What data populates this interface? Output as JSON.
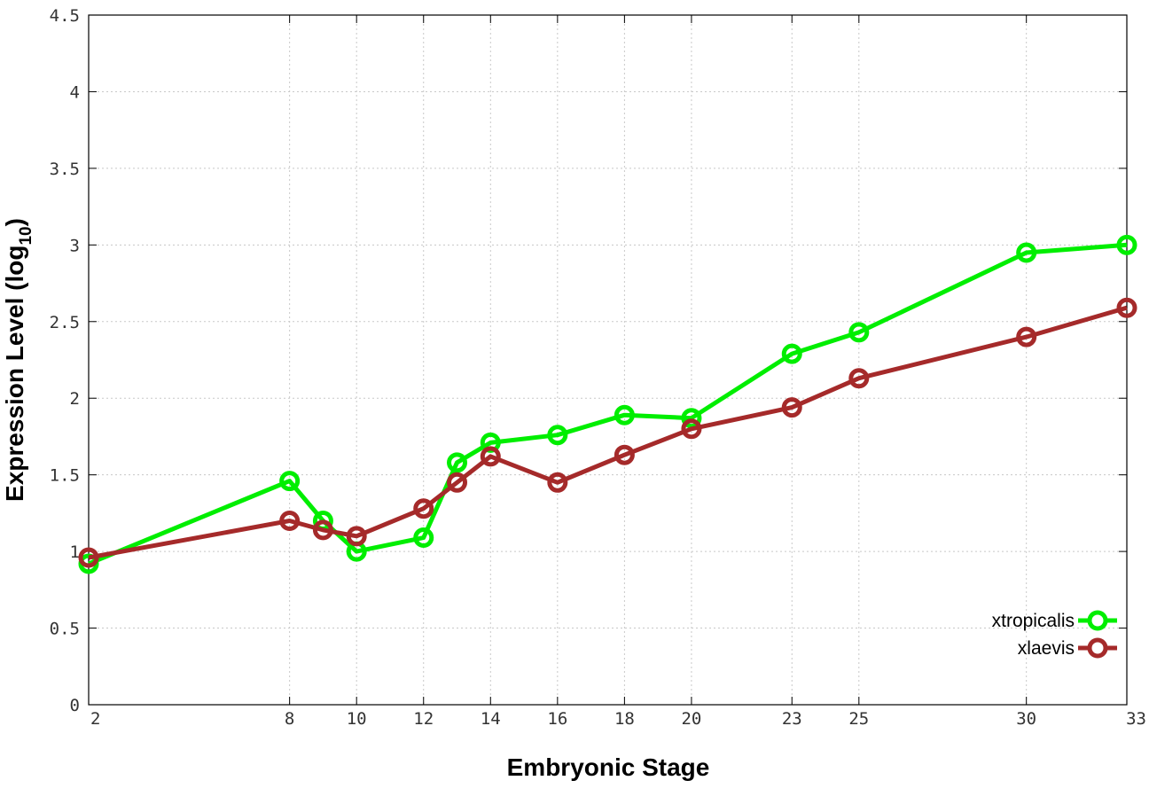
{
  "chart_data": {
    "type": "line",
    "title": "",
    "xlabel": "Embryonic Stage",
    "ylabel_main": "Expression Level (log",
    "ylabel_sub": "10",
    "ylabel_close": ")",
    "xticks": [
      2,
      8,
      10,
      12,
      14,
      16,
      18,
      20,
      23,
      25,
      30,
      33
    ],
    "yticks": [
      "0",
      "0.5",
      "1",
      "1.5",
      "2",
      "2.5",
      "3",
      "3.5",
      "4",
      "4.5"
    ],
    "ylim": [
      0,
      4.5
    ],
    "grid": true,
    "legend_position": "bottom-right",
    "series": [
      {
        "name": "xtropicalis",
        "color": "#00ee00",
        "points": [
          [
            2,
            0.92
          ],
          [
            8,
            1.46
          ],
          [
            9,
            1.2
          ],
          [
            10,
            1.0
          ],
          [
            12,
            1.09
          ],
          [
            13,
            1.58
          ],
          [
            14,
            1.71
          ],
          [
            16,
            1.76
          ],
          [
            18,
            1.89
          ],
          [
            20,
            1.87
          ],
          [
            23,
            2.29
          ],
          [
            25,
            2.43
          ],
          [
            30,
            2.95
          ],
          [
            33,
            3.0
          ]
        ]
      },
      {
        "name": "xlaevis",
        "color": "#a52a2a",
        "points": [
          [
            2,
            0.96
          ],
          [
            8,
            1.2
          ],
          [
            9,
            1.14
          ],
          [
            10,
            1.1
          ],
          [
            12,
            1.28
          ],
          [
            13,
            1.45
          ],
          [
            14,
            1.62
          ],
          [
            16,
            1.45
          ],
          [
            18,
            1.63
          ],
          [
            20,
            1.8
          ],
          [
            23,
            1.94
          ],
          [
            25,
            2.13
          ],
          [
            30,
            2.4
          ],
          [
            33,
            2.59
          ]
        ]
      }
    ]
  }
}
